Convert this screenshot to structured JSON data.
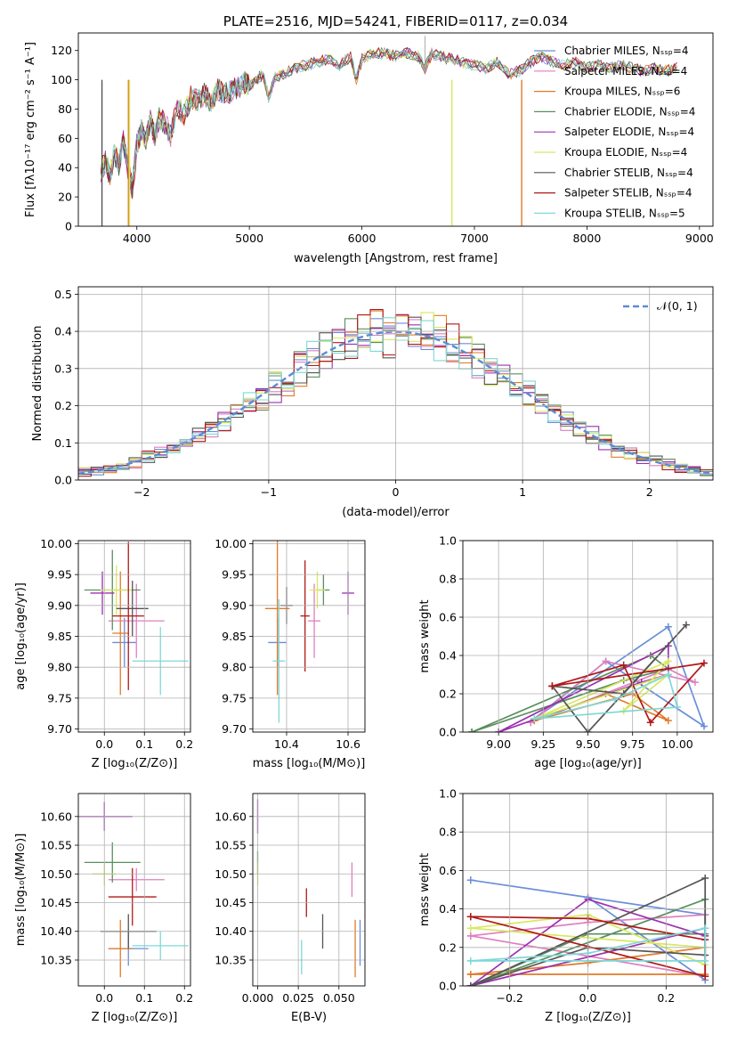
{
  "chart_data": [
    {
      "type": "line",
      "panel": "spectrum",
      "title": "PLATE=2516, MJD=54241, FIBERID=0117, z=0.034",
      "xlabel": "wavelength [Angstrom, rest frame]",
      "ylabel": "Flux [fλ10⁻¹⁷ erg cm⁻² s⁻¹ A⁻¹]",
      "xlim": [
        3480,
        9120
      ],
      "ylim": [
        0,
        132
      ],
      "xticks": [
        "4000",
        "5000",
        "6000",
        "7000",
        "8000",
        "9000"
      ],
      "yticks": [
        "0",
        "20",
        "40",
        "60",
        "80",
        "100",
        "120"
      ],
      "legend_position": "top-right",
      "spectrum_points": [
        [
          3680,
          38
        ],
        [
          3720,
          44
        ],
        [
          3760,
          35
        ],
        [
          3800,
          50
        ],
        [
          3840,
          42
        ],
        [
          3880,
          58
        ],
        [
          3920,
          40
        ],
        [
          3960,
          25
        ],
        [
          4000,
          55
        ],
        [
          4040,
          66
        ],
        [
          4080,
          60
        ],
        [
          4120,
          72
        ],
        [
          4160,
          62
        ],
        [
          4200,
          74
        ],
        [
          4260,
          70
        ],
        [
          4300,
          62
        ],
        [
          4360,
          82
        ],
        [
          4420,
          76
        ],
        [
          4480,
          88
        ],
        [
          4540,
          86
        ],
        [
          4600,
          90
        ],
        [
          4660,
          85
        ],
        [
          4720,
          94
        ],
        [
          4780,
          90
        ],
        [
          4840,
          92
        ],
        [
          4900,
          95
        ],
        [
          4960,
          98
        ],
        [
          5000,
          96
        ],
        [
          5060,
          100
        ],
        [
          5120,
          104
        ],
        [
          5170,
          88
        ],
        [
          5230,
          102
        ],
        [
          5300,
          104
        ],
        [
          5400,
          108
        ],
        [
          5500,
          110
        ],
        [
          5600,
          112
        ],
        [
          5700,
          114
        ],
        [
          5800,
          110
        ],
        [
          5900,
          116
        ],
        [
          5950,
          100
        ],
        [
          6000,
          114
        ],
        [
          6100,
          118
        ],
        [
          6200,
          118
        ],
        [
          6300,
          116
        ],
        [
          6400,
          118
        ],
        [
          6500,
          116
        ],
        [
          6560,
          108
        ],
        [
          6620,
          118
        ],
        [
          6700,
          116
        ],
        [
          6800,
          114
        ],
        [
          6900,
          112
        ],
        [
          7000,
          110
        ],
        [
          7100,
          108
        ],
        [
          7200,
          112
        ],
        [
          7300,
          104
        ],
        [
          7400,
          106
        ],
        [
          7500,
          112
        ],
        [
          7600,
          116
        ],
        [
          7700,
          112
        ],
        [
          7800,
          110
        ],
        [
          7900,
          112
        ],
        [
          8000,
          108
        ],
        [
          8100,
          110
        ],
        [
          8200,
          108
        ],
        [
          8300,
          110
        ],
        [
          8400,
          108
        ],
        [
          8500,
          106
        ],
        [
          8600,
          108
        ],
        [
          8700,
          106
        ],
        [
          8800,
          108
        ]
      ],
      "series": [
        {
          "name": "Chabrier MILES, Nₛₛₚ=4",
          "color": "#6a8fd8"
        },
        {
          "name": "Salpeter MILES, Nₛₛₚ=4",
          "color": "#e07fbf"
        },
        {
          "name": "Kroupa MILES, Nₛₛₚ=6",
          "color": "#e07b2a"
        },
        {
          "name": "Chabrier ELODIE, Nₛₛₚ=4",
          "color": "#5a8f5e"
        },
        {
          "name": "Salpeter ELODIE, Nₛₛₚ=4",
          "color": "#9b30b0"
        },
        {
          "name": "Kroupa ELODIE, Nₛₛₚ=4",
          "color": "#d8e860"
        },
        {
          "name": "Chabrier STELIB, Nₛₛₚ=4",
          "color": "#555555"
        },
        {
          "name": "Salpeter STELIB, Nₛₛₚ=4",
          "color": "#b01818"
        },
        {
          "name": "Kroupa STELIB, Nₛₛₚ=5",
          "color": "#7fd8d8"
        }
      ]
    },
    {
      "type": "line",
      "panel": "residuals",
      "xlabel": "(data-model)/error",
      "ylabel": "Normed distribution",
      "xlim": [
        -2.5,
        2.5
      ],
      "ylim": [
        0,
        0.52
      ],
      "xticks": [
        "−2",
        "−1",
        "0",
        "1",
        "2"
      ],
      "yticks": [
        "0.0",
        "0.1",
        "0.2",
        "0.3",
        "0.4",
        "0.5"
      ],
      "legend": "𝒩(0, 1)",
      "legend_position": "top-right",
      "bin_edges": [
        -2.5,
        -2.4,
        -2.3,
        -2.2,
        -2.1,
        -2.0,
        -1.9,
        -1.8,
        -1.7,
        -1.6,
        -1.5,
        -1.4,
        -1.3,
        -1.2,
        -1.1,
        -1.0,
        -0.9,
        -0.8,
        -0.7,
        -0.6,
        -0.5,
        -0.4,
        -0.3,
        -0.2,
        -0.1,
        0.0,
        0.1,
        0.2,
        0.3,
        0.4,
        0.5,
        0.6,
        0.7,
        0.8,
        0.9,
        1.0,
        1.1,
        1.2,
        1.3,
        1.4,
        1.5,
        1.6,
        1.7,
        1.8,
        1.9,
        2.0,
        2.1,
        2.2,
        2.3,
        2.4,
        2.5
      ]
    },
    {
      "type": "scatter",
      "panel": "age-vs-Z",
      "xlabel": "Z [log₁₀(Z/Z⊙)]",
      "ylabel": "age  [log₁₀(age/yr)]",
      "xlim": [
        -0.065,
        0.215
      ],
      "ylim": [
        9.695,
        10.005
      ],
      "xticks": [
        "0.0",
        "0.1",
        "0.2"
      ],
      "yticks": [
        "9.70",
        "9.75",
        "9.80",
        "9.85",
        "9.90",
        "9.95",
        "10.00"
      ],
      "points": [
        {
          "color": "#6a8fd8",
          "x": 0.05,
          "xerr": 0.03,
          "y": 9.84,
          "yerr": 0.04
        },
        {
          "color": "#e07fbf",
          "x": 0.08,
          "xerr": 0.07,
          "y": 9.875,
          "yerr": 0.06
        },
        {
          "color": "#e07b2a",
          "x": 0.04,
          "xerr": 0.02,
          "y": 9.855,
          "yerr": 0.1
        },
        {
          "color": "#5a8f5e",
          "x": 0.02,
          "xerr": 0.07,
          "y": 9.925,
          "yerr": 0.065
        },
        {
          "color": "#9b30b0",
          "x": -0.005,
          "xerr": 0.03,
          "y": 9.92,
          "yerr": 0.035
        },
        {
          "color": "#d8e860",
          "x": 0.03,
          "xerr": 0.04,
          "y": 9.925,
          "yerr": 0.04
        },
        {
          "color": "#555555",
          "x": 0.07,
          "xerr": 0.04,
          "y": 9.895,
          "yerr": 0.045
        },
        {
          "color": "#b01818",
          "x": 0.06,
          "xerr": 0.04,
          "y": 9.883,
          "yerr": 0.12
        },
        {
          "color": "#7fd8d8",
          "x": 0.14,
          "xerr": 0.07,
          "y": 9.81,
          "yerr": 0.055
        }
      ]
    },
    {
      "type": "scatter",
      "panel": "age-vs-mass",
      "xlabel": "mass [log₁₀(M/M⊙)]",
      "xlim": [
        10.29,
        10.655
      ],
      "ylim": [
        9.695,
        10.005
      ],
      "xticks": [
        "10.4",
        "10.6"
      ],
      "yticks": [
        "9.70",
        "9.75",
        "9.80",
        "9.85",
        "9.90",
        "9.95",
        "10.00"
      ],
      "points": [
        {
          "color": "#6a8fd8",
          "x": 10.37,
          "xerr": 0.03,
          "y": 9.84,
          "yerr": 0.04
        },
        {
          "color": "#e07fbf",
          "x": 10.49,
          "xerr": 0.02,
          "y": 9.875,
          "yerr": 0.06
        },
        {
          "color": "#e07b2a",
          "x": 10.37,
          "xerr": 0.04,
          "y": 9.895,
          "yerr": 0.14
        },
        {
          "color": "#5a8f5e",
          "x": 10.52,
          "xerr": 0.02,
          "y": 9.925,
          "yerr": 0.025
        },
        {
          "color": "#9b30b0",
          "x": 10.6,
          "xerr": 0.02,
          "y": 9.92,
          "yerr": 0.035
        },
        {
          "color": "#d8e860",
          "x": 10.5,
          "xerr": 0.025,
          "y": 9.925,
          "yerr": 0.03
        },
        {
          "color": "#555555",
          "x": 10.4,
          "xerr": 0.02,
          "y": 9.9,
          "yerr": 0.03
        },
        {
          "color": "#b01818",
          "x": 10.46,
          "xerr": 0.015,
          "y": 9.883,
          "yerr": 0.09
        },
        {
          "color": "#7fd8d8",
          "x": 10.375,
          "xerr": 0.02,
          "y": 9.81,
          "yerr": 0.1
        }
      ]
    },
    {
      "type": "line",
      "panel": "weight-vs-age",
      "xlabel": "age  [log₁₀(age/yr)]",
      "ylabel": "mass weight",
      "xlim": [
        8.8,
        10.2
      ],
      "ylim": [
        0,
        1
      ],
      "xticks": [
        "9.00",
        "9.25",
        "9.50",
        "9.75",
        "10.00"
      ],
      "yticks": [
        "0.0",
        "0.2",
        "0.4",
        "0.6",
        "0.8",
        "1.0"
      ],
      "series": [
        {
          "color": "#6a8fd8",
          "x": [
            9.2,
            9.95,
            10.15,
            9.6,
            9.2
          ],
          "y": [
            0.07,
            0.55,
            0.03,
            0.37,
            0.07
          ]
        },
        {
          "color": "#e07fbf",
          "x": [
            9.18,
            9.6,
            10.1,
            9.95,
            9.18
          ],
          "y": [
            0.05,
            0.37,
            0.26,
            0.33,
            0.05
          ]
        },
        {
          "color": "#e07b2a",
          "x": [
            9.2,
            9.6,
            9.95,
            9.75,
            9.2
          ],
          "y": [
            0.06,
            0.2,
            0.06,
            0.2,
            0.06
          ]
        },
        {
          "color": "#5a8f5e",
          "x": [
            8.85,
            9.7,
            9.95,
            9.85,
            8.85
          ],
          "y": [
            0.0,
            0.27,
            0.33,
            0.4,
            0.0
          ]
        },
        {
          "color": "#9b30b0",
          "x": [
            9.0,
            9.95,
            9.95,
            9.8,
            9.0
          ],
          "y": [
            0.0,
            0.45,
            0.3,
            0.26,
            0.0
          ]
        },
        {
          "color": "#d8e860",
          "x": [
            9.2,
            9.95,
            9.7,
            9.95,
            9.2
          ],
          "y": [
            0.07,
            0.37,
            0.11,
            0.3,
            0.07
          ]
        },
        {
          "color": "#555555",
          "x": [
            9.3,
            9.5,
            10.05,
            9.7,
            9.3
          ],
          "y": [
            0.24,
            0.0,
            0.56,
            0.2,
            0.24
          ]
        },
        {
          "color": "#b01818",
          "x": [
            9.3,
            9.7,
            9.85,
            10.15,
            9.3
          ],
          "y": [
            0.24,
            0.35,
            0.05,
            0.36,
            0.24
          ]
        },
        {
          "color": "#7fd8d8",
          "x": [
            9.2,
            9.65,
            9.95,
            10.0,
            9.2
          ],
          "y": [
            0.07,
            0.17,
            0.3,
            0.13,
            0.07
          ]
        }
      ]
    },
    {
      "type": "scatter",
      "panel": "mass-vs-Z",
      "xlabel": "Z [log₁₀(Z/Z⊙)]",
      "ylabel": "mass [log₁₀(M/M⊙)]",
      "xlim": [
        -0.065,
        0.215
      ],
      "ylim": [
        10.305,
        10.64
      ],
      "xticks": [
        "0.0",
        "0.1",
        "0.2"
      ],
      "yticks": [
        "10.35",
        "10.40",
        "10.45",
        "10.50",
        "10.55",
        "10.60"
      ],
      "points": [
        {
          "color": "#6a8fd8",
          "x": 0.06,
          "xerr": 0.05,
          "y": 10.37,
          "yerr": 0.03
        },
        {
          "color": "#e07fbf",
          "x": 0.08,
          "xerr": 0.07,
          "y": 10.49,
          "yerr": 0.02
        },
        {
          "color": "#e07b2a",
          "x": 0.04,
          "xerr": 0.03,
          "y": 10.37,
          "yerr": 0.05
        },
        {
          "color": "#5a8f5e",
          "x": 0.02,
          "xerr": 0.07,
          "y": 10.52,
          "yerr": 0.035
        },
        {
          "color": "#9b30b0",
          "x": 0.0,
          "xerr": 0.07,
          "y": 10.6,
          "yerr": 0.025
        },
        {
          "color": "#d8e860",
          "x": 0.0,
          "xerr": 0.03,
          "y": 10.5,
          "yerr": 0.02
        },
        {
          "color": "#555555",
          "x": 0.06,
          "xerr": 0.07,
          "y": 10.4,
          "yerr": 0.03
        },
        {
          "color": "#b01818",
          "x": 0.07,
          "xerr": 0.06,
          "y": 10.46,
          "yerr": 0.05
        },
        {
          "color": "#7fd8d8",
          "x": 0.14,
          "xerr": 0.07,
          "y": 10.375,
          "yerr": 0.025
        }
      ]
    },
    {
      "type": "scatter",
      "panel": "mass-vs-EBV",
      "xlabel": "E(B-V)",
      "xlim": [
        -0.003,
        0.066
      ],
      "ylim": [
        10.305,
        10.64
      ],
      "xticks": [
        "0.000",
        "0.025",
        "0.050"
      ],
      "yticks": [
        "10.35",
        "10.40",
        "10.45",
        "10.50",
        "10.55",
        "10.60"
      ],
      "points": [
        {
          "color": "#6a8fd8",
          "x": 0.063,
          "y": 10.38,
          "yerr": 0.04
        },
        {
          "color": "#e07fbf",
          "x": 0.058,
          "y": 10.49,
          "yerr": 0.03
        },
        {
          "color": "#e07b2a",
          "x": 0.06,
          "y": 10.37,
          "yerr": 0.05
        },
        {
          "color": "#5a8f5e",
          "x": 0.0,
          "y": 10.52,
          "yerr": 0.02
        },
        {
          "color": "#9b30b0",
          "x": 0.0,
          "y": 10.6,
          "yerr": 0.03
        },
        {
          "color": "#d8e860",
          "x": 0.0,
          "y": 10.5,
          "yerr": 0.02
        },
        {
          "color": "#555555",
          "x": 0.04,
          "y": 10.4,
          "yerr": 0.03
        },
        {
          "color": "#b01818",
          "x": 0.03,
          "y": 10.45,
          "yerr": 0.025
        },
        {
          "color": "#7fd8d8",
          "x": 0.027,
          "y": 10.355,
          "yerr": 0.03
        }
      ]
    },
    {
      "type": "line",
      "panel": "weight-vs-Z",
      "xlabel": "Z [log₁₀(Z/Z⊙)]",
      "ylabel": "mass weight",
      "xlim": [
        -0.32,
        0.32
      ],
      "ylim": [
        0,
        1
      ],
      "xticks": [
        "−0.2",
        "0.0",
        "0.2"
      ],
      "yticks": [
        "0.0",
        "0.2",
        "0.4",
        "0.6",
        "0.8",
        "1.0"
      ],
      "series": [
        {
          "color": "#6a8fd8",
          "x": [
            -0.3,
            0.3,
            0.3,
            0.0,
            -0.3
          ],
          "y": [
            0.55,
            0.37,
            0.03,
            0.46,
            0.55
          ]
        },
        {
          "color": "#e07fbf",
          "x": [
            -0.3,
            0.0,
            0.3,
            0.3,
            -0.3
          ],
          "y": [
            0.26,
            0.33,
            0.37,
            0.05,
            0.26
          ]
        },
        {
          "color": "#e07b2a",
          "x": [
            -0.3,
            0.0,
            0.3,
            0.3,
            -0.3
          ],
          "y": [
            0.06,
            0.12,
            0.2,
            0.06,
            0.06
          ]
        },
        {
          "color": "#5a8f5e",
          "x": [
            -0.3,
            0.0,
            0.3,
            0.3,
            -0.3
          ],
          "y": [
            0.0,
            0.27,
            0.27,
            0.45,
            0.0
          ]
        },
        {
          "color": "#9b30b0",
          "x": [
            -0.3,
            0.0,
            0.3,
            0.3,
            -0.3
          ],
          "y": [
            0.0,
            0.45,
            0.26,
            0.3,
            0.0
          ]
        },
        {
          "color": "#d8e860",
          "x": [
            -0.3,
            0.0,
            0.3,
            0.3,
            -0.3
          ],
          "y": [
            0.3,
            0.37,
            0.11,
            0.2,
            0.3
          ]
        },
        {
          "color": "#555555",
          "x": [
            -0.3,
            0.0,
            0.3,
            0.3,
            -0.3
          ],
          "y": [
            0.0,
            0.2,
            0.16,
            0.56,
            0.0
          ]
        },
        {
          "color": "#b01818",
          "x": [
            -0.3,
            0.0,
            0.3,
            0.3,
            -0.3
          ],
          "y": [
            0.36,
            0.35,
            0.24,
            0.05,
            0.36
          ]
        },
        {
          "color": "#7fd8d8",
          "x": [
            -0.3,
            0.0,
            0.3,
            0.3,
            -0.3
          ],
          "y": [
            0.13,
            0.17,
            0.3,
            0.13,
            0.13
          ]
        }
      ]
    }
  ]
}
